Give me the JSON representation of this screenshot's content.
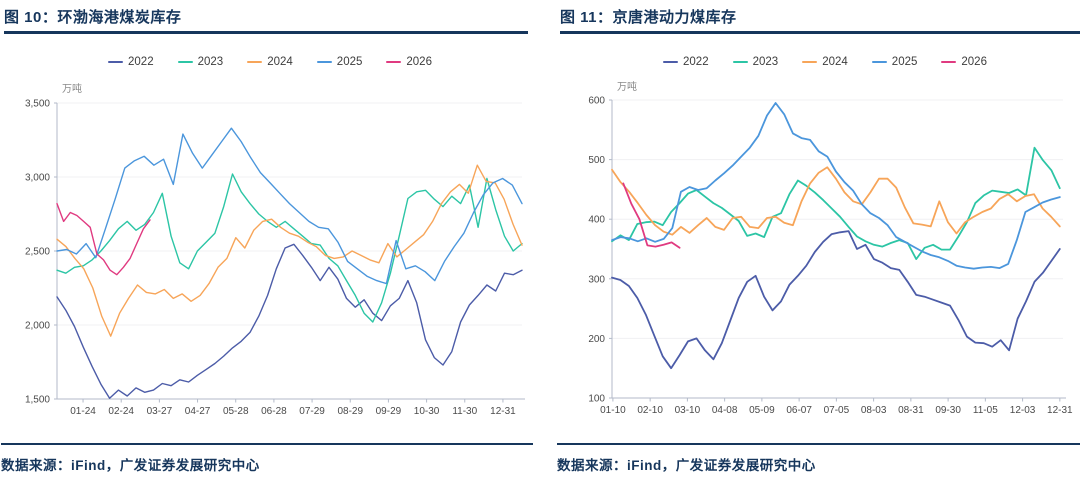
{
  "page_background": "#ffffff",
  "axis_color": "#b3bac9",
  "grid_color": "#f0f0f3",
  "chart_data": [
    {
      "type": "line",
      "title": "图 10：环渤海港煤炭库存",
      "unit": "万吨",
      "source": "数据来源：iFind，广发证券发展研究中心",
      "ylim": [
        1500,
        3500
      ],
      "grid": true,
      "legend_position": "top",
      "yticks": [
        {
          "v": 1500,
          "label": "1,500"
        },
        {
          "v": 2000,
          "label": "2,000"
        },
        {
          "v": 2500,
          "label": "2,500"
        },
        {
          "v": 3000,
          "label": "3,000"
        },
        {
          "v": 3500,
          "label": "3,500"
        }
      ],
      "categories": [
        "01-24",
        "02-24",
        "03-27",
        "04-27",
        "05-28",
        "06-28",
        "07-29",
        "08-29",
        "09-29",
        "10-30",
        "11-30",
        "12-31"
      ],
      "series": [
        {
          "name": "2022",
          "color": "#4c5ca8",
          "x0": 0,
          "x1": 1,
          "values": [
            2190,
            2100,
            1990,
            1850,
            1720,
            1600,
            1505,
            1560,
            1520,
            1575,
            1545,
            1560,
            1605,
            1590,
            1630,
            1615,
            1660,
            1700,
            1740,
            1790,
            1845,
            1890,
            1950,
            2060,
            2200,
            2380,
            2520,
            2545,
            2470,
            2390,
            2300,
            2390,
            2310,
            2180,
            2120,
            2170,
            2080,
            2030,
            2130,
            2180,
            2300,
            2150,
            1900,
            1780,
            1730,
            1820,
            2020,
            2135,
            2200,
            2270,
            2230,
            2350,
            2340,
            2370
          ]
        },
        {
          "name": "2023",
          "color": "#2cc5a5",
          "x0": 0,
          "x1": 1,
          "values": [
            2370,
            2350,
            2390,
            2400,
            2440,
            2500,
            2570,
            2650,
            2700,
            2640,
            2680,
            2760,
            2890,
            2600,
            2420,
            2380,
            2500,
            2560,
            2620,
            2800,
            3020,
            2900,
            2820,
            2750,
            2700,
            2660,
            2700,
            2650,
            2600,
            2550,
            2540,
            2450,
            2400,
            2300,
            2200,
            2080,
            2020,
            2150,
            2350,
            2600,
            2855,
            2900,
            2910,
            2850,
            2800,
            2870,
            2820,
            2945,
            2660,
            2990,
            2780,
            2600,
            2500,
            2550
          ]
        },
        {
          "name": "2024",
          "color": "#f7a559",
          "x0": 0,
          "x1": 1,
          "values": [
            2580,
            2530,
            2450,
            2380,
            2250,
            2060,
            1925,
            2080,
            2180,
            2270,
            2220,
            2210,
            2240,
            2180,
            2210,
            2160,
            2200,
            2280,
            2390,
            2450,
            2590,
            2520,
            2640,
            2700,
            2715,
            2660,
            2620,
            2600,
            2560,
            2530,
            2470,
            2450,
            2460,
            2500,
            2470,
            2440,
            2420,
            2550,
            2460,
            2510,
            2560,
            2610,
            2700,
            2820,
            2900,
            2950,
            2890,
            3080,
            2970,
            2960,
            2850,
            2680,
            2540
          ]
        },
        {
          "name": "2025",
          "color": "#4b96dc",
          "x0": 0,
          "x1": 1,
          "values": [
            2500,
            2510,
            2480,
            2550,
            2455,
            2650,
            2850,
            3060,
            3110,
            3140,
            3080,
            3120,
            2950,
            3290,
            3160,
            3060,
            3150,
            3240,
            3330,
            3240,
            3130,
            3030,
            2960,
            2890,
            2820,
            2760,
            2700,
            2660,
            2650,
            2560,
            2430,
            2380,
            2330,
            2300,
            2280,
            2570,
            2380,
            2400,
            2360,
            2300,
            2430,
            2530,
            2620,
            2760,
            2880,
            2960,
            2990,
            2945,
            2820
          ]
        },
        {
          "name": "2026",
          "color": "#e03a80",
          "x0": 0,
          "x1": 0.2,
          "values": [
            2820,
            2700,
            2760,
            2740,
            2700,
            2660,
            2480,
            2440,
            2370,
            2340,
            2390,
            2450,
            2550,
            2650,
            2710
          ]
        }
      ]
    },
    {
      "type": "line",
      "title": "图 11：京唐港动力煤库存",
      "unit": "万吨",
      "source": "数据来源：iFind，广发证券发展研究中心",
      "ylim": [
        100,
        600
      ],
      "grid": true,
      "legend_position": "top",
      "yticks": [
        {
          "v": 100,
          "label": "100"
        },
        {
          "v": 200,
          "label": "200"
        },
        {
          "v": 300,
          "label": "300"
        },
        {
          "v": 400,
          "label": "400"
        },
        {
          "v": 500,
          "label": "500"
        },
        {
          "v": 600,
          "label": "600"
        }
      ],
      "categories": [
        "01-10",
        "02-10",
        "03-10",
        "04-08",
        "05-09",
        "06-07",
        "07-05",
        "08-03",
        "08-31",
        "09-30",
        "11-05",
        "12-03",
        "12-31"
      ],
      "series": [
        {
          "name": "2022",
          "color": "#4c5ca8",
          "x0": 0,
          "x1": 0.993,
          "values": [
            302,
            298,
            288,
            268,
            240,
            205,
            170,
            150,
            172,
            195,
            200,
            180,
            165,
            192,
            230,
            268,
            295,
            305,
            270,
            247,
            262,
            290,
            305,
            322,
            345,
            362,
            375,
            378,
            380,
            350,
            357,
            333,
            327,
            318,
            315,
            295,
            273,
            270,
            265,
            260,
            255,
            231,
            203,
            193,
            192,
            186,
            197,
            180,
            233,
            262,
            295,
            310,
            330,
            350
          ]
        },
        {
          "name": "2023",
          "color": "#2cc5a5",
          "x0": 0,
          "x1": 0.993,
          "values": [
            363,
            373,
            365,
            392,
            395,
            396,
            390,
            412,
            427,
            443,
            449,
            438,
            427,
            419,
            408,
            397,
            372,
            376,
            370,
            404,
            410,
            442,
            465,
            456,
            445,
            432,
            418,
            404,
            387,
            371,
            363,
            357,
            354,
            360,
            365,
            360,
            333,
            352,
            357,
            349,
            349,
            371,
            395,
            427,
            440,
            448,
            446,
            444,
            450,
            440,
            520,
            499,
            482,
            452
          ]
        },
        {
          "name": "2024",
          "color": "#f7a559",
          "x0": 0,
          "x1": 0.993,
          "values": [
            483,
            462,
            446,
            427,
            407,
            390,
            379,
            374,
            387,
            377,
            390,
            402,
            387,
            382,
            402,
            404,
            387,
            385,
            402,
            404,
            394,
            390,
            430,
            460,
            478,
            487,
            468,
            445,
            430,
            425,
            445,
            468,
            468,
            453,
            420,
            393,
            391,
            388,
            430,
            395,
            376,
            395,
            404,
            412,
            418,
            434,
            442,
            430,
            439,
            442,
            418,
            404,
            388
          ]
        },
        {
          "name": "2025",
          "color": "#4b96dc",
          "x0": 0,
          "x1": 0.993,
          "values": [
            365,
            370,
            368,
            363,
            368,
            362,
            367,
            385,
            446,
            454,
            449,
            452,
            465,
            477,
            490,
            505,
            520,
            540,
            574,
            595,
            576,
            544,
            536,
            533,
            514,
            505,
            480,
            462,
            448,
            425,
            410,
            402,
            390,
            370,
            362,
            354,
            346,
            340,
            336,
            330,
            322,
            319,
            317,
            319,
            320,
            318,
            325,
            365,
            412,
            420,
            428,
            433,
            437
          ]
        },
        {
          "name": "2026",
          "color": "#e03a80",
          "x0": 0.025,
          "x1": 0.15,
          "values": [
            460,
            426,
            400,
            356,
            354,
            357,
            361,
            352
          ]
        }
      ]
    }
  ]
}
